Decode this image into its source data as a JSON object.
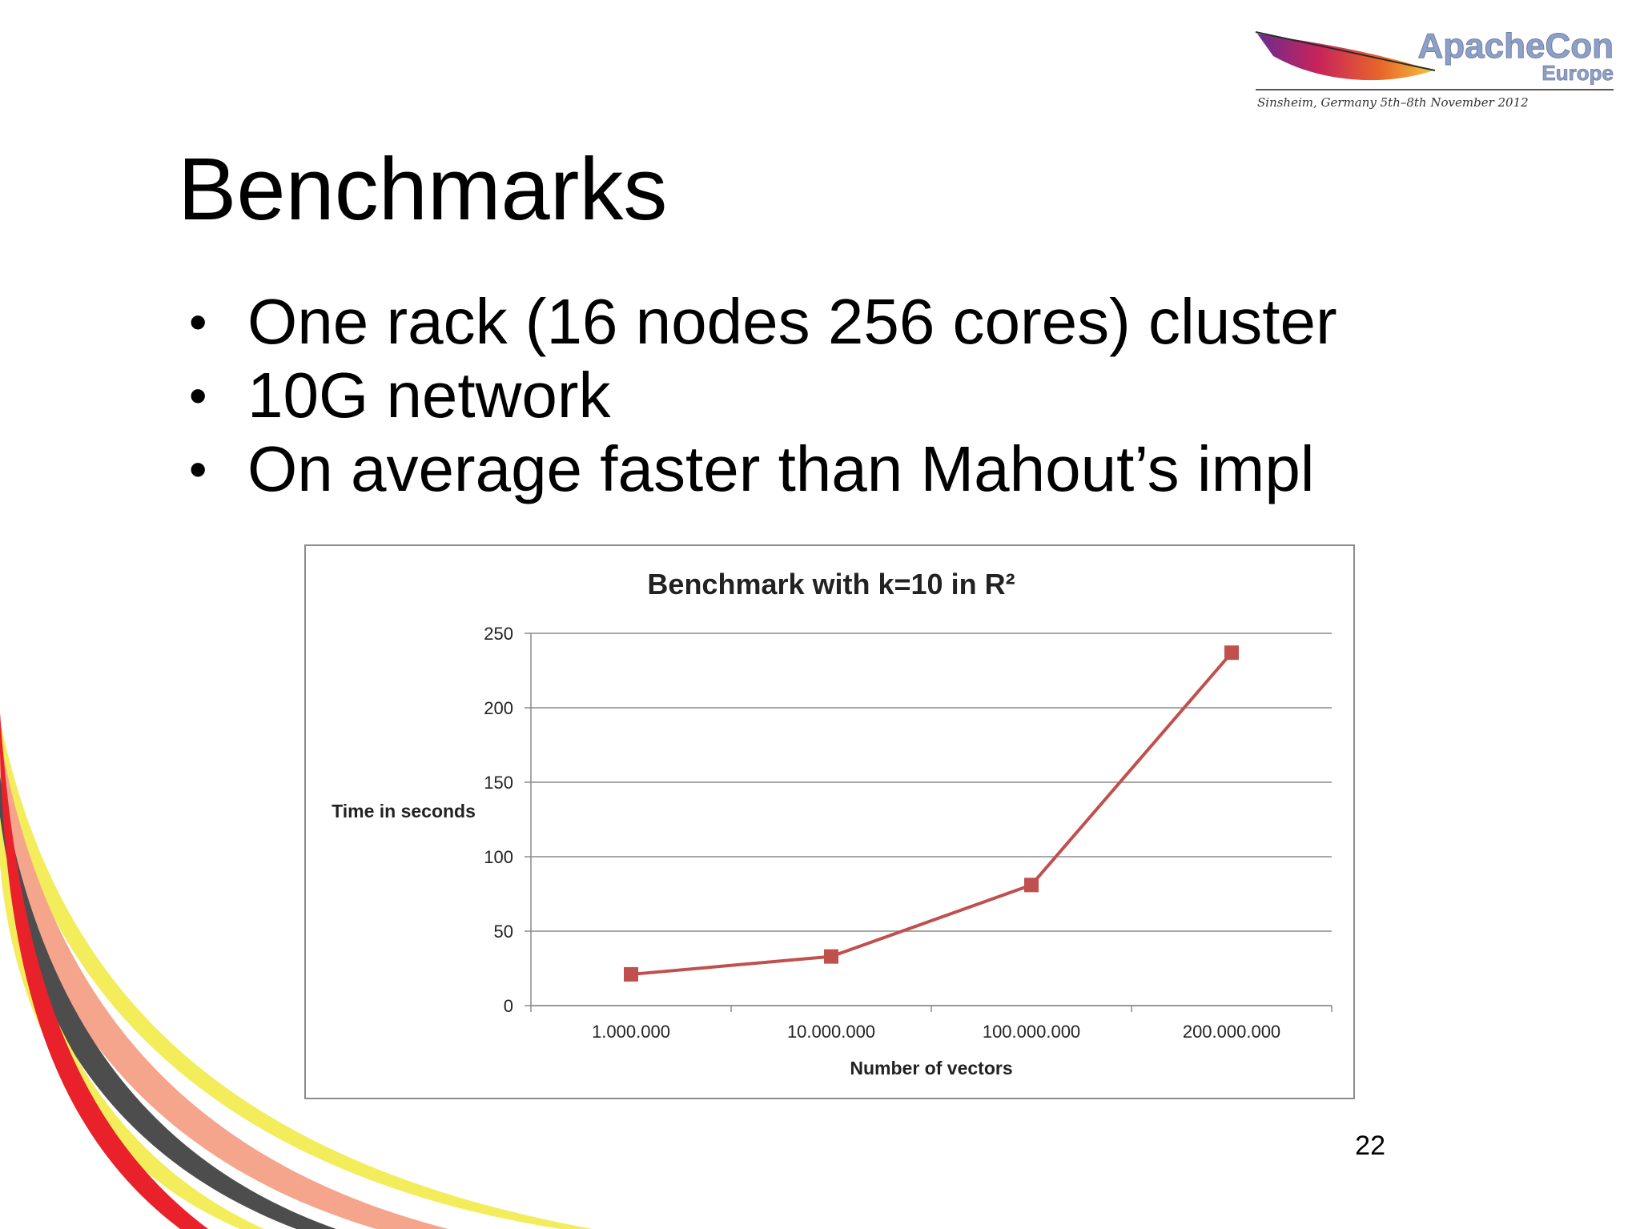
{
  "slide": {
    "title": "Benchmarks",
    "bullets": [
      "One rack (16 nodes 256 cores) cluster",
      "10G network",
      "On average faster than Mahout’s impl"
    ],
    "page_number": "22"
  },
  "logo": {
    "line1": "ApacheCon",
    "line2": "Europe",
    "subtitle": "Sinsheim, Germany 5th–8th November 2012",
    "icon": "feather-icon"
  },
  "colors": {
    "series": "#c0504d",
    "logo_text": "#8fa0c6",
    "swoosh": [
      "#e8212a",
      "#f3ec5b",
      "#4d4d4d",
      "#f4a58c"
    ]
  },
  "chart_data": {
    "type": "line",
    "title": "Benchmark with k=10 in R²",
    "xlabel": "Number of vectors",
    "ylabel": "Time in seconds",
    "categories": [
      "1.000.000",
      "10.000.000",
      "100.000.000",
      "200.000.000"
    ],
    "series": [
      {
        "values": [
          21,
          33,
          81,
          237
        ]
      }
    ],
    "ylim": [
      0,
      250
    ],
    "yticks": [
      0,
      50,
      100,
      150,
      200,
      250
    ],
    "grid": true,
    "legend": "none",
    "marker": "square"
  }
}
